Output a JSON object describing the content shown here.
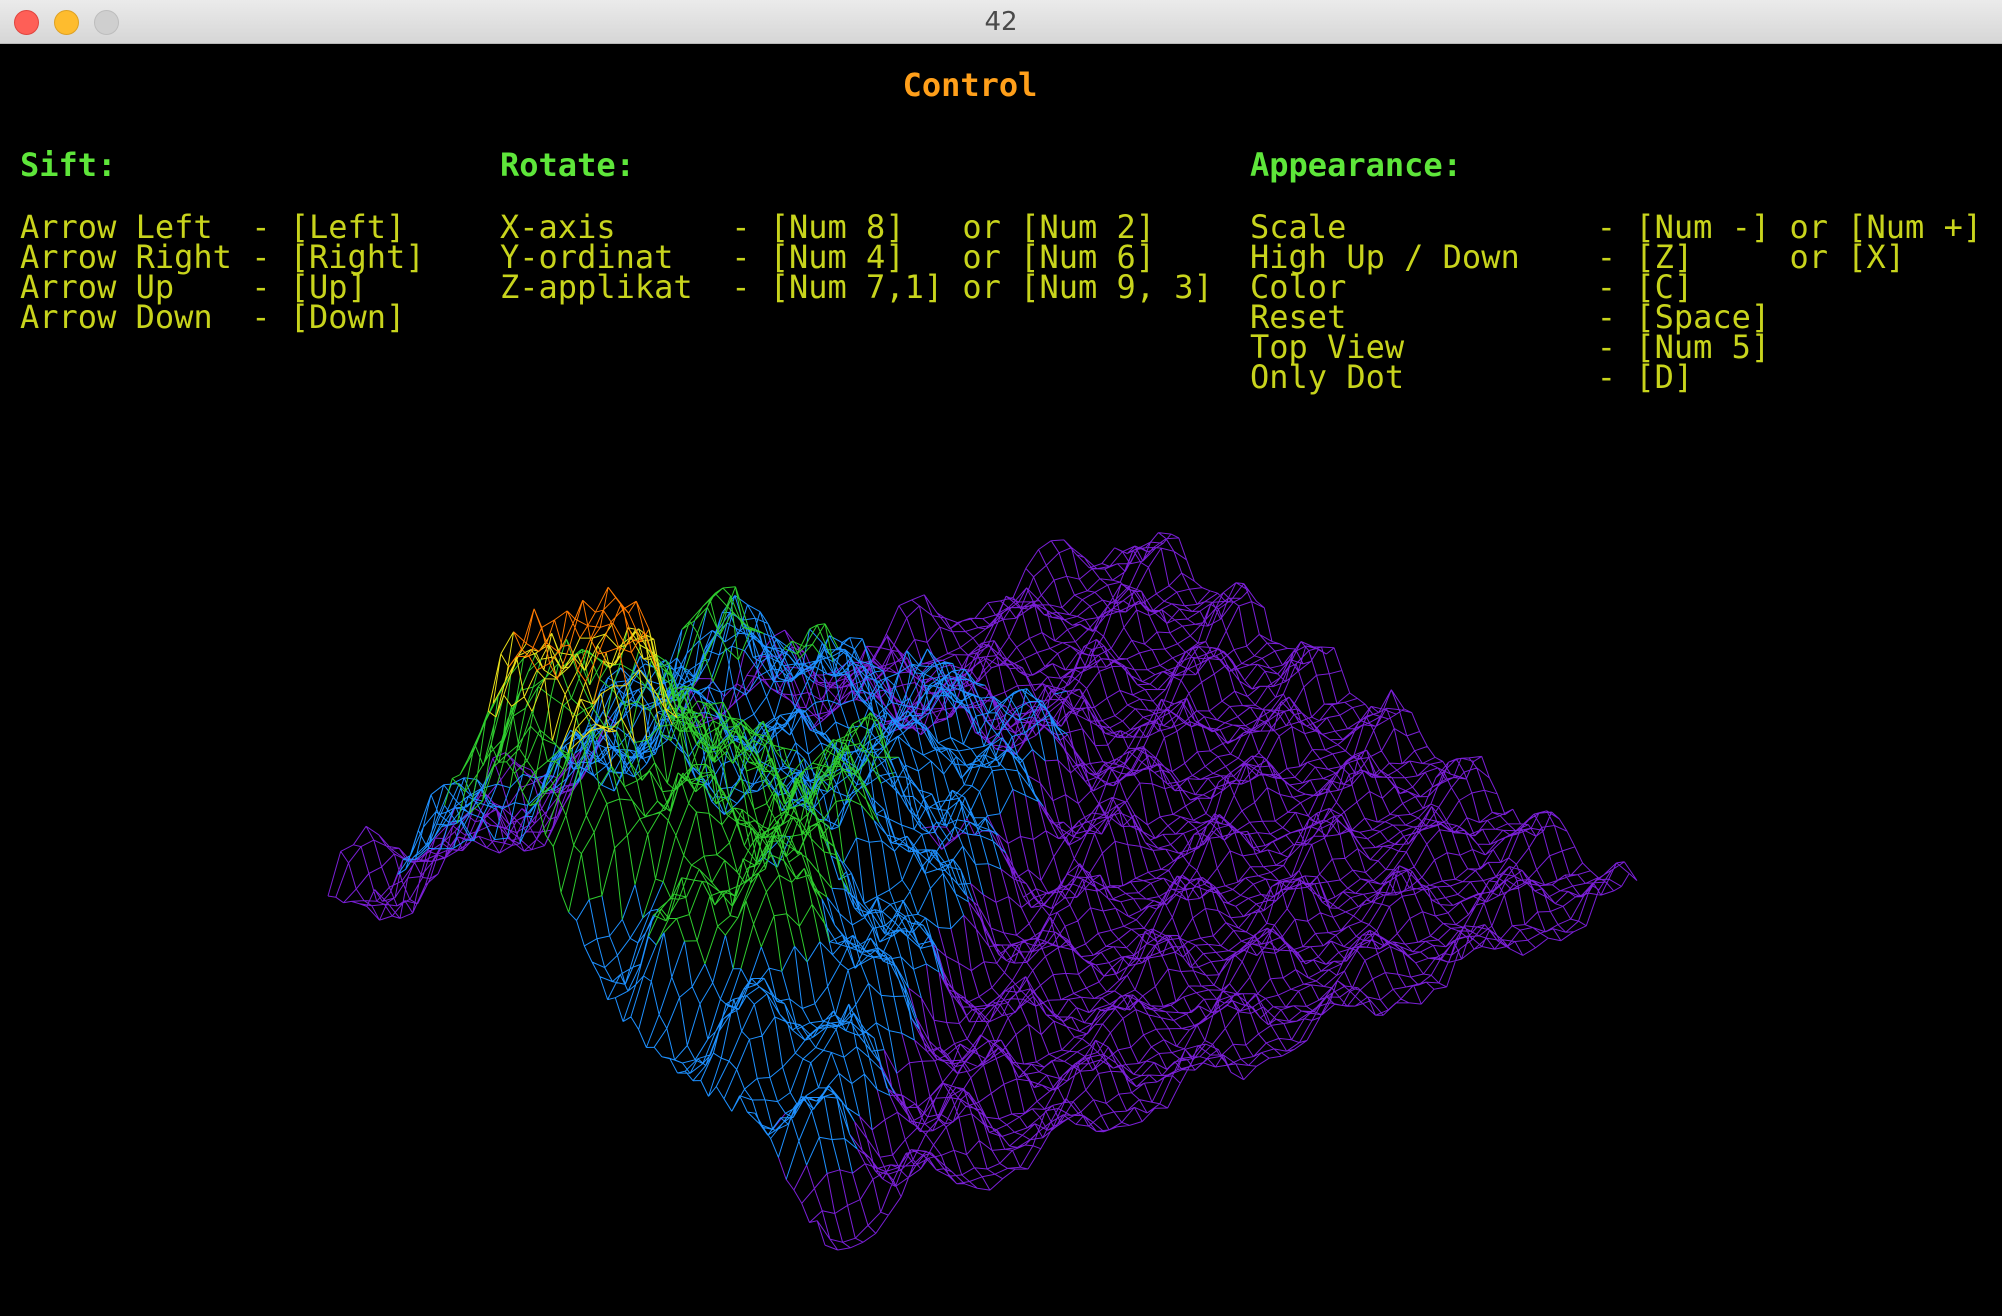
{
  "window": {
    "title": "42",
    "controls": {
      "close": "close-button",
      "minimize": "minimize-button",
      "zoom": "zoom-button"
    }
  },
  "control_panel": {
    "title": "Control",
    "sift": {
      "header": "Sift:",
      "rows": [
        "Arrow Left  - [Left]",
        "Arrow Right - [Right]",
        "Arrow Up    - [Up]",
        "Arrow Down  - [Down]"
      ]
    },
    "rotate": {
      "header": "Rotate:",
      "rows": [
        "X-axis      - [Num 8]   or [Num 2]",
        "Y-ordinat   - [Num 4]   or [Num 6]",
        "Z-applikat  - [Num 7,1] or [Num 9, 3]"
      ]
    },
    "appearance": {
      "header": "Appearance:",
      "rows": [
        "Scale             - [Num -] or [Num +]",
        "High Up / Down    - [Z]     or [X]",
        "Color             - [C]",
        "Reset             - [Space]",
        "Top View          - [Num 5]",
        "Only Dot          - [D]"
      ]
    }
  },
  "colors": {
    "background": "#000000",
    "title": "#ff9f1a",
    "section_header": "#5ee63a",
    "row_text": "#c8d41c",
    "mesh_low": "#7a1fd6",
    "mesh_mid": "#1e90ff",
    "mesh_high": "#2ecc2e",
    "mesh_peak": "#ff7a00"
  }
}
